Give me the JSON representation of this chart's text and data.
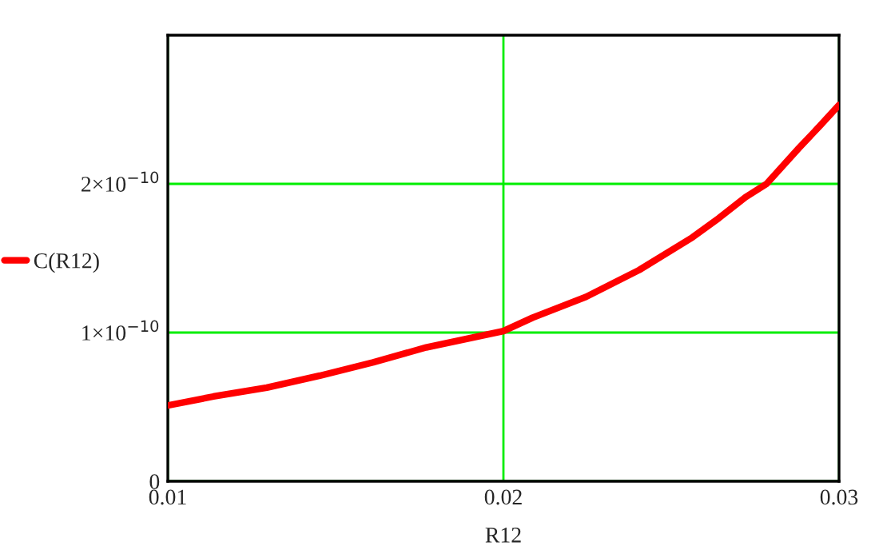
{
  "chart_data": {
    "type": "line",
    "xlabel": "R12",
    "x": [
      0.01,
      0.01136,
      0.01295,
      0.01453,
      0.01612,
      0.0177,
      0.02,
      0.02087,
      0.02246,
      0.02404,
      0.02563,
      0.02642,
      0.02721,
      0.02784,
      0.0288,
      0.02943,
      0.03
    ],
    "series": [
      {
        "name": "C(R12)",
        "color": "#ff0000",
        "values": [
          5.1e-11,
          5.7e-11,
          6.3e-11,
          7.1e-11,
          8e-11,
          9e-11,
          1.01e-10,
          1.1e-10,
          1.24e-10,
          1.42e-10,
          1.64e-10,
          1.77e-10,
          1.91e-10,
          2e-10,
          2.24e-10,
          2.39e-10,
          2.53e-10
        ]
      }
    ],
    "xlim": [
      0.01,
      0.03
    ],
    "xticks": [
      0.01,
      0.02,
      0.03
    ],
    "ylim": [
      0,
      3e-10
    ],
    "yticks": [
      0,
      {
        "value": 1e-10,
        "label": "1×10$^{−10}$"
      },
      {
        "value": 2e-10,
        "label": "2×10$^{−10}$"
      }
    ],
    "grid": true,
    "legend": "left",
    "marker": "none",
    "line_style": "solid"
  }
}
